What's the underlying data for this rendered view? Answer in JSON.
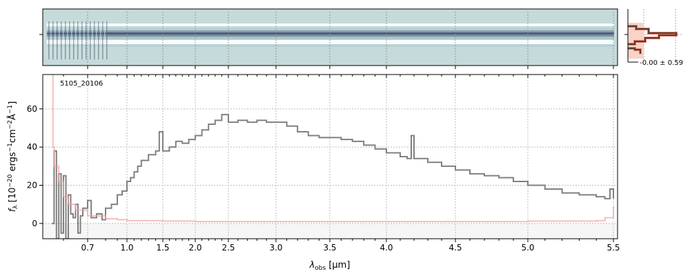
{
  "chart_data": {
    "type": "line",
    "object_id": "5105_20106",
    "xlabel": "λobs [μm]",
    "xlabel_main": "λ",
    "xlabel_sub": "obs",
    "xlabel_unit": " [μm]",
    "ylabel": "fλ [10^-20 ergs^-1 cm^-2 Å^-1]",
    "x_ticks": [
      0.7,
      1.0,
      1.5,
      2.0,
      2.5,
      3.0,
      3.5,
      4.0,
      4.5,
      5.0,
      5.5
    ],
    "x_tick_labels": [
      "0.7",
      "1.0",
      "1.5",
      "2.0",
      "2.5",
      "3.0",
      "3.5",
      "4.0",
      "4.5",
      "5.0",
      "5.5"
    ],
    "y_ticks": [
      0,
      20,
      40,
      60
    ],
    "y_tick_labels": [
      "0",
      "20",
      "40",
      "60"
    ],
    "ylim": [
      -8,
      78
    ],
    "grid": true,
    "series": [
      {
        "role": "flux",
        "color": "#808080",
        "x": [
          0.55,
          0.56,
          0.57,
          0.58,
          0.59,
          0.6,
          0.61,
          0.62,
          0.63,
          0.64,
          0.65,
          0.66,
          0.67,
          0.68,
          0.7,
          0.72,
          0.75,
          0.78,
          0.8,
          0.85,
          0.9,
          0.95,
          1.0,
          1.05,
          1.1,
          1.15,
          1.2,
          1.3,
          1.4,
          1.45,
          1.5,
          1.6,
          1.7,
          1.8,
          1.9,
          2.0,
          2.1,
          2.2,
          2.3,
          2.4,
          2.5,
          2.6,
          2.7,
          2.8,
          2.9,
          3.0,
          3.1,
          3.2,
          3.3,
          3.4,
          3.5,
          3.6,
          3.7,
          3.8,
          3.9,
          4.0,
          4.1,
          4.15,
          4.18,
          4.2,
          4.3,
          4.4,
          4.5,
          4.6,
          4.7,
          4.8,
          4.9,
          5.0,
          5.1,
          5.2,
          5.3,
          5.4,
          5.45,
          5.48,
          5.5
        ],
        "y": [
          0,
          38,
          -8,
          26,
          -5,
          25,
          -8,
          15,
          5,
          3,
          10,
          -5,
          4,
          8,
          12,
          3,
          5,
          2,
          8,
          10,
          15,
          17,
          22,
          24,
          27,
          30,
          33,
          36,
          38,
          48,
          38,
          40,
          43,
          42,
          44,
          46,
          49,
          52,
          54,
          57,
          53,
          54,
          53,
          54,
          53,
          53,
          51,
          48,
          46,
          45,
          45,
          44,
          43,
          41,
          39,
          37,
          35,
          34,
          46,
          34,
          32,
          30,
          28,
          26,
          25,
          24,
          22,
          20,
          18,
          16,
          15,
          14,
          13,
          18,
          13
        ]
      },
      {
        "role": "error",
        "color": "#f4a0a0",
        "x": [
          0.55,
          0.555,
          0.56,
          0.58,
          0.6,
          0.62,
          0.65,
          0.7,
          0.8,
          0.9,
          1.0,
          1.5,
          2.0,
          3.0,
          4.0,
          5.0,
          5.4,
          5.45,
          5.5
        ],
        "y": [
          78,
          40,
          30,
          22,
          14,
          10,
          7,
          4,
          2.5,
          2,
          1.5,
          1.2,
          1,
          1,
          1,
          1.2,
          1.5,
          3,
          9
        ]
      }
    ],
    "inset": {
      "label": "-0.00 ± 0.59"
    }
  }
}
